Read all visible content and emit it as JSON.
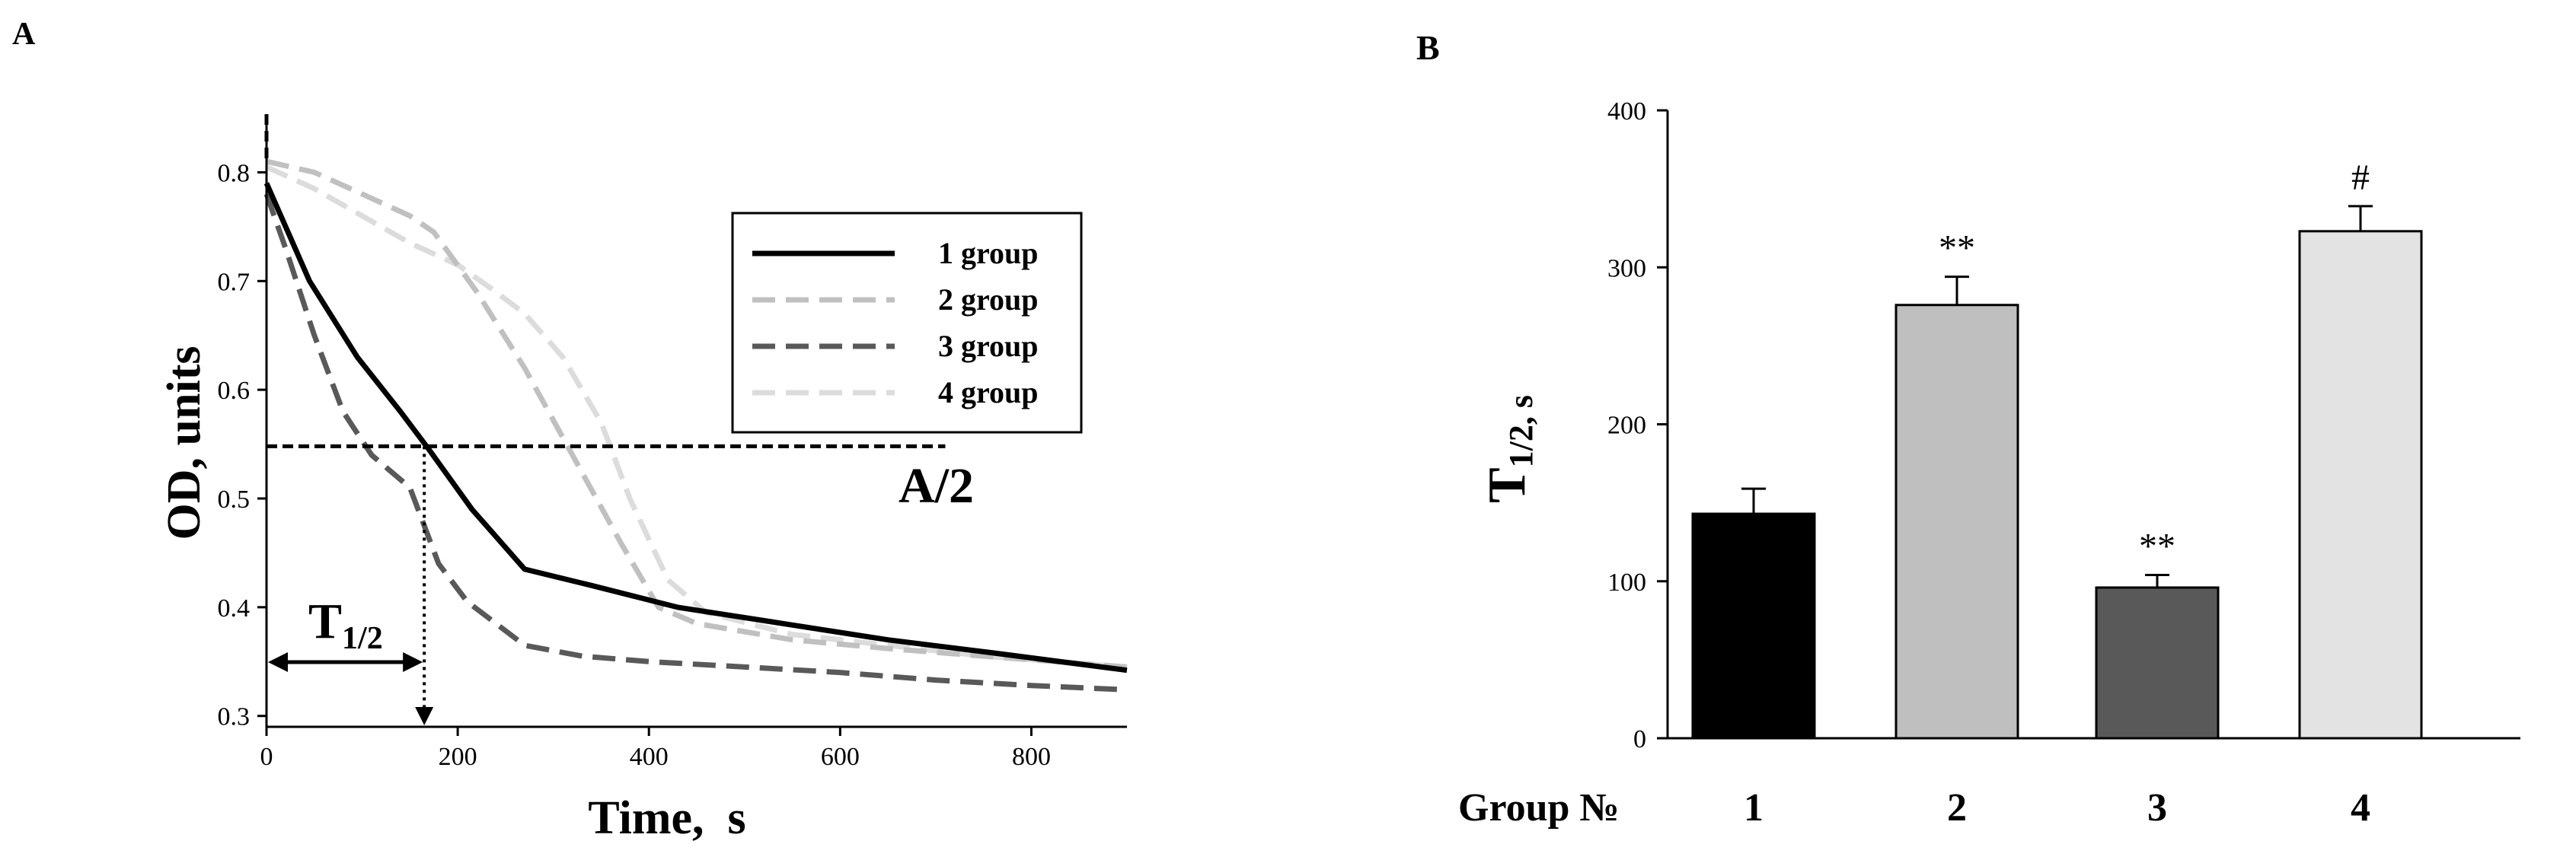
{
  "chart_data": [
    {
      "panel": "A",
      "type": "line",
      "xlabel": "Time,  s",
      "ylabel": "OD, units",
      "xlim": [
        0,
        900
      ],
      "ylim": [
        0.29,
        0.85
      ],
      "xticks": [
        "0",
        "200",
        "400",
        "600",
        "800"
      ],
      "yticks": [
        "0.3",
        "0.4",
        "0.5",
        "0.6",
        "0.7",
        "0.8"
      ],
      "grid": false,
      "legend_position": "top-right",
      "series": [
        {
          "name": "1 group",
          "style": "solid",
          "color": "#000000",
          "x": [
            0,
            45,
            95,
            140,
            170,
            215,
            270,
            340,
            430,
            540,
            650,
            760,
            900
          ],
          "y": [
            0.79,
            0.7,
            0.63,
            0.58,
            0.545,
            0.49,
            0.435,
            0.42,
            0.4,
            0.385,
            0.37,
            0.358,
            0.342
          ]
        },
        {
          "name": "2 group",
          "style": "dashed",
          "color": "#c0c0c0",
          "x": [
            0,
            50,
            100,
            150,
            175,
            220,
            270,
            320,
            370,
            410,
            450,
            550,
            650,
            750,
            900
          ],
          "y": [
            0.81,
            0.8,
            0.78,
            0.76,
            0.745,
            0.69,
            0.62,
            0.54,
            0.46,
            0.4,
            0.385,
            0.37,
            0.362,
            0.355,
            0.345
          ]
        },
        {
          "name": "3 group",
          "style": "dashed",
          "color": "#595959",
          "x": [
            0,
            20,
            50,
            80,
            110,
            150,
            180,
            210,
            270,
            330,
            400,
            500,
            600,
            700,
            800,
            900
          ],
          "y": [
            0.78,
            0.73,
            0.65,
            0.58,
            0.54,
            0.51,
            0.44,
            0.405,
            0.365,
            0.355,
            0.35,
            0.345,
            0.34,
            0.333,
            0.328,
            0.324
          ]
        },
        {
          "name": "4 group",
          "style": "dashed",
          "color": "#dcdcdc",
          "x": [
            0,
            50,
            100,
            150,
            200,
            240,
            270,
            310,
            350,
            380,
            420,
            460,
            550,
            650,
            750,
            900
          ],
          "y": [
            0.805,
            0.785,
            0.76,
            0.735,
            0.715,
            0.69,
            0.67,
            0.63,
            0.57,
            0.5,
            0.425,
            0.395,
            0.375,
            0.365,
            0.355,
            0.345
          ]
        }
      ],
      "annotations": [
        {
          "text": "A/2",
          "y": 0.548,
          "x_start": 0,
          "x_end": 710
        },
        {
          "text": "T1/2",
          "x": 165
        }
      ]
    },
    {
      "panel": "B",
      "type": "bar",
      "xlabel": "Group №",
      "ylabel": "T1/2, s",
      "ylim": [
        0,
        400
      ],
      "yticks": [
        "0",
        "100",
        "200",
        "300",
        "400"
      ],
      "categories": [
        "1",
        "2",
        "3",
        "4"
      ],
      "values": [
        143,
        276,
        96,
        323
      ],
      "errors": [
        16,
        18,
        8,
        16
      ],
      "significance": [
        "",
        "**",
        "**",
        "#"
      ],
      "colors": [
        "#000000",
        "#bfbfbf",
        "#595959",
        "#e3e3e3"
      ],
      "grid": false
    }
  ],
  "panels": {
    "a_label": "A",
    "b_label": "B",
    "a_half_label": "A/2",
    "t_half_main": "T",
    "t_half_sub": "1/2",
    "b_ylabel_main": "T",
    "b_ylabel_sub": "1/2, s"
  }
}
